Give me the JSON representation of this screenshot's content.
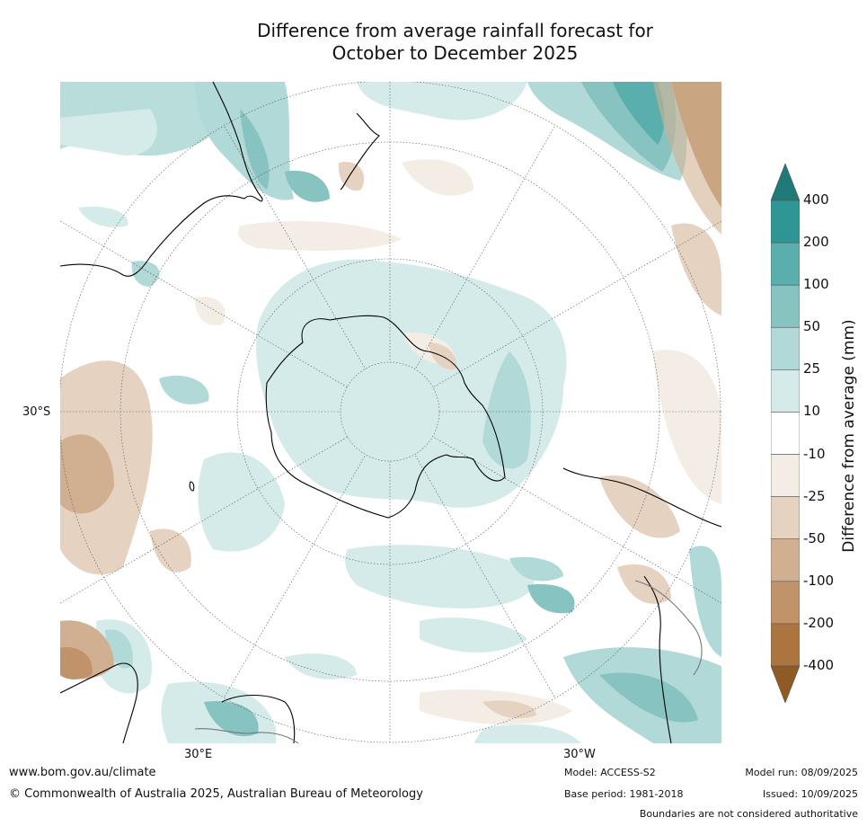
{
  "title": {
    "line1": "Difference from average rainfall forecast for",
    "line2": "October to December 2025"
  },
  "map": {
    "projection": "south-polar-stereographic",
    "lat_label": "30°S",
    "lon_labels": [
      "30°E",
      "30°W"
    ],
    "colors": {
      "land_outline": "#000000",
      "border": "#777777",
      "grid": "#555555"
    }
  },
  "colorbar": {
    "title": "Difference from average (mm)",
    "tick_labels": [
      "400",
      "200",
      "100",
      "50",
      "25",
      "10",
      "-10",
      "-25",
      "-50",
      "-100",
      "-200",
      "-400"
    ],
    "colors": [
      "#1f7a78",
      "#2e9795",
      "#5aaeab",
      "#87c3c1",
      "#b0d9d7",
      "#d5ebea",
      "#ffffff",
      "#f3ede6",
      "#e5d2c0",
      "#d1b091",
      "#c0936a",
      "#ac7540",
      "#8f5a24"
    ]
  },
  "footer": {
    "website": "www.bom.gov.au/climate",
    "copyright": "© Commonwealth of Australia 2025, Australian Bureau of Meteorology",
    "model": "Model: ACCESS-S2",
    "base_period": "Base period: 1981-2018",
    "model_run": "Model run: 08/09/2025",
    "issued": "Issued: 10/09/2025",
    "disclaimer": "Boundaries are not considered authoritative"
  }
}
